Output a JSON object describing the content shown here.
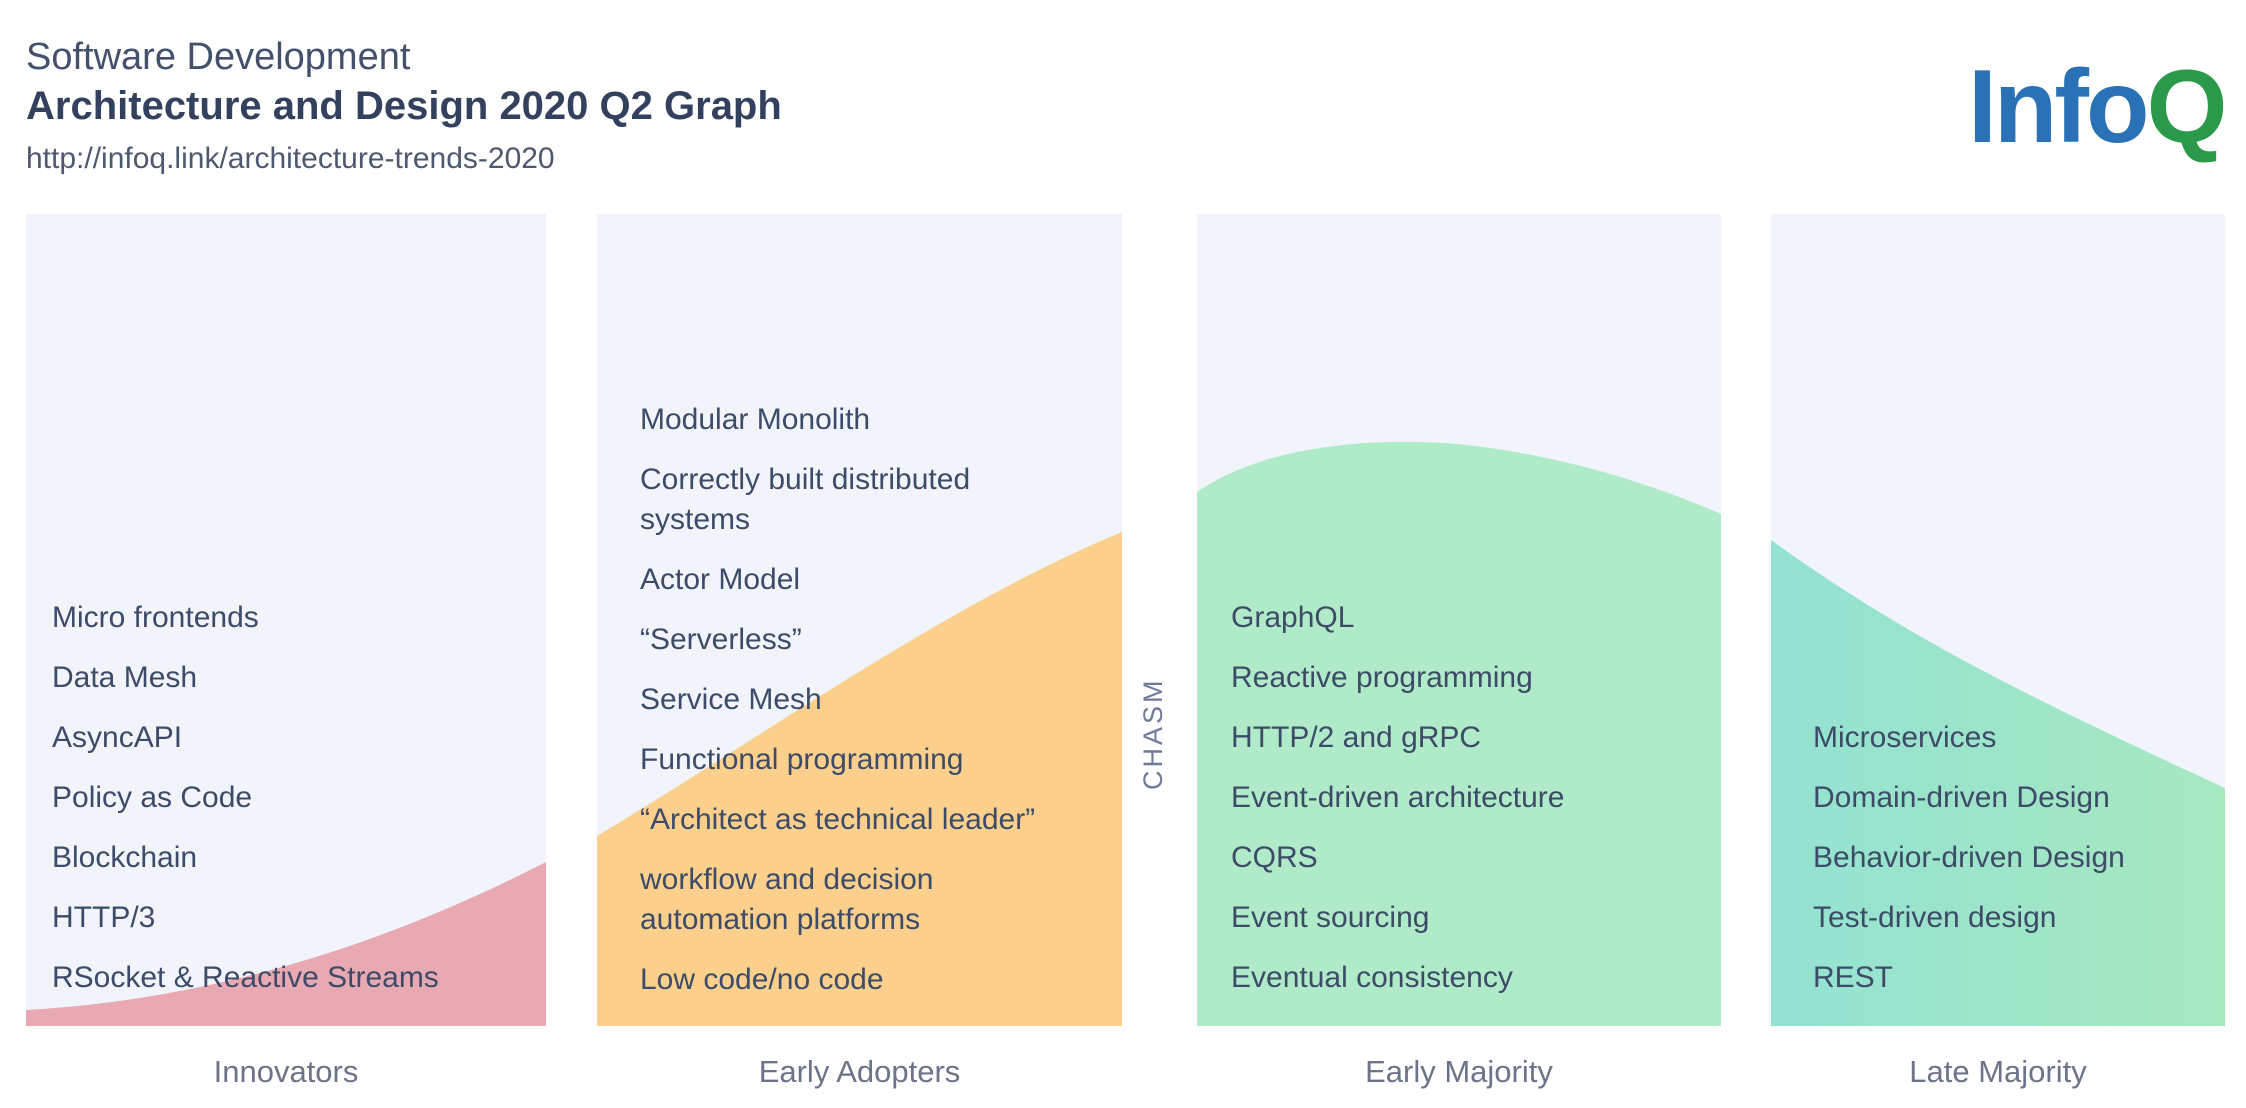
{
  "header": {
    "title_line1": "Software Development",
    "title_line2": "Architecture and Design 2020 Q2 Graph",
    "url": "http://infoq.link/architecture-trends-2020"
  },
  "logo": {
    "part1": "Info",
    "part2": "Q"
  },
  "chasm_label": "CHASM",
  "colors": {
    "panel_bg": "#f1f4fb",
    "innovators": "#e8a9b3",
    "early_adopters": "#fbd08c",
    "early_majority": "#b0ebc9",
    "late_majority_start": "#93e2d2",
    "late_majority_end": "#a7e8c0",
    "logo_blue": "#2a72b5",
    "logo_green": "#2a9a4a"
  },
  "stages": [
    {
      "name": "Innovators",
      "items": [
        "Micro frontends",
        "Data Mesh",
        "AsyncAPI",
        "Policy as Code",
        "Blockchain",
        "HTTP/3",
        "RSocket & Reactive Streams"
      ]
    },
    {
      "name": "Early Adopters",
      "items": [
        "Modular Monolith",
        "Correctly built distributed systems",
        "Actor Model",
        "“Serverless”",
        "Service Mesh",
        "Functional programming",
        "“Architect as technical leader”",
        "workflow and decision automation platforms",
        "Low code/no code"
      ]
    },
    {
      "name": "Early Majority",
      "items": [
        "GraphQL",
        "Reactive programming",
        "HTTP/2 and gRPC",
        "Event-driven architecture",
        "CQRS",
        "Event sourcing",
        "Eventual consistency"
      ]
    },
    {
      "name": "Late Majority",
      "items": [
        "Microservices",
        "Domain-driven Design",
        "Behavior-driven Design",
        "Test-driven design",
        "REST"
      ]
    }
  ]
}
